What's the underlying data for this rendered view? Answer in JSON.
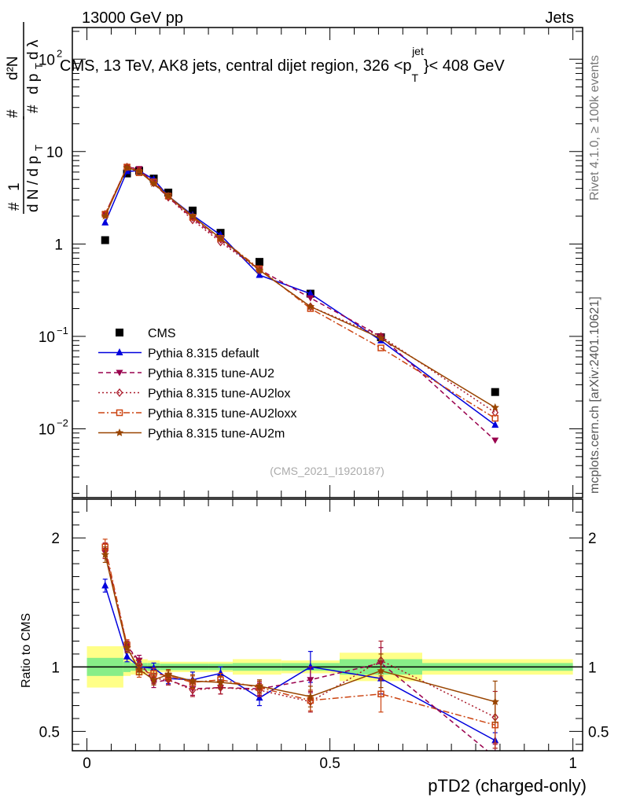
{
  "header": {
    "left": "13000 GeV pp",
    "right": "Jets",
    "title": "CMS, 13 TeV, AK8 jets, central dijet region, 326 <p",
    "title_sub": "T",
    "title_sup": "jet",
    "title_end": "}< 408 GeV"
  },
  "side": {
    "rivet": "Rivet 4.1.0, ≥ 100k events",
    "mcplots": "mcplots.cern.ch [arXiv:2401.10621]"
  },
  "watermark": "(CMS_2021_I1920187)",
  "y_label_main": "1/N dN/dpT dlambda",
  "chart_data": [
    {
      "type": "scatter",
      "title": "CMS, 13 TeV, AK8 jets, central dijet region, 326 < pT jet < 408 GeV",
      "xlabel": "pTD2 (charged-only)",
      "ylabel": "1/(dN/dpT) d²N/(dpT dλ)",
      "yscale": "log",
      "xlim": [
        -0.03,
        1.02
      ],
      "ylim": [
        0.0018,
        220
      ],
      "x": [
        0.0375,
        0.0825,
        0.1075,
        0.1375,
        0.1675,
        0.2175,
        0.275,
        0.355,
        0.46,
        0.605,
        0.84
      ],
      "x_bins": [
        [
          0.0,
          0.075
        ],
        [
          0.075,
          0.09
        ],
        [
          0.09,
          0.125
        ],
        [
          0.125,
          0.15
        ],
        [
          0.15,
          0.185
        ],
        [
          0.185,
          0.25
        ],
        [
          0.25,
          0.3
        ],
        [
          0.3,
          0.4
        ],
        [
          0.4,
          0.52
        ],
        [
          0.52,
          0.69
        ],
        [
          0.69,
          1.0
        ]
      ],
      "yticks": [
        {
          "v": 100,
          "label": "10",
          "exp": "2"
        },
        {
          "v": 10,
          "label": "10",
          "exp": ""
        },
        {
          "v": 1,
          "label": "1",
          "exp": ""
        },
        {
          "v": 0.1,
          "label": "10",
          "exp": "−1"
        },
        {
          "v": 0.01,
          "label": "10",
          "exp": "−2"
        }
      ],
      "series": [
        {
          "name": "CMS",
          "color": "#000000",
          "marker": "square",
          "dash": "",
          "values": [
            1.1,
            5.8,
            6.2,
            5.1,
            3.6,
            2.3,
            1.32,
            0.64,
            0.29,
            0.098,
            0.025
          ]
        },
        {
          "name": "Pythia 8.315 default",
          "color": "#0000dd",
          "marker": "triangle-up",
          "dash": "",
          "values": [
            1.7,
            6.1,
            6.2,
            5.0,
            3.3,
            2.05,
            1.25,
            0.46,
            0.29,
            0.09,
            0.011
          ]
        },
        {
          "name": "Pythia 8.315 tune-AU2",
          "color": "#99004d",
          "marker": "triangle-down",
          "dash": "6,4",
          "values": [
            2.1,
            6.8,
            6.5,
            4.5,
            3.2,
            1.9,
            1.1,
            0.53,
            0.26,
            0.1,
            0.0075
          ]
        },
        {
          "name": "Pythia 8.315 tune-AU2lox",
          "color": "#aa1a2a",
          "marker": "diamond",
          "dash": "2,3",
          "values": [
            2.1,
            6.8,
            6.3,
            4.6,
            3.2,
            1.82,
            1.05,
            0.52,
            0.21,
            0.1,
            0.015
          ]
        },
        {
          "name": "Pythia 8.315 tune-AU2loxx",
          "color": "#cc4411",
          "marker": "square-open",
          "dash": "8,3,2,3",
          "values": [
            2.1,
            6.8,
            5.9,
            4.7,
            3.3,
            1.95,
            1.15,
            0.54,
            0.2,
            0.075,
            0.013
          ]
        },
        {
          "name": "Pythia 8.315 tune-AU2m",
          "color": "#994400",
          "marker": "star",
          "dash": "",
          "values": [
            2.0,
            6.7,
            6.1,
            4.5,
            3.3,
            2.0,
            1.15,
            0.52,
            0.21,
            0.095,
            0.017
          ]
        }
      ]
    },
    {
      "type": "scatter",
      "title": "Ratio",
      "xlabel": "pTD2 (charged-only)",
      "ylabel": "Ratio to CMS",
      "xlim": [
        -0.03,
        1.02
      ],
      "ylim": [
        0.35,
        2.3
      ],
      "xticks": [
        0,
        0.5,
        1
      ],
      "xtick_labels": [
        "0",
        "0.5",
        "1"
      ],
      "yticks": [
        0.5,
        1,
        2
      ],
      "ytick_labels": [
        "0.5",
        "1",
        "2"
      ],
      "reference": 1,
      "bands": [
        {
          "x0": 0.0,
          "x1": 0.075,
          "stat": 0.07,
          "syst": 0.16
        },
        {
          "x0": 0.075,
          "x1": 0.09,
          "stat": 0.04,
          "syst": 0.07
        },
        {
          "x0": 0.09,
          "x1": 0.125,
          "stat": 0.03,
          "syst": 0.06
        },
        {
          "x0": 0.125,
          "x1": 0.15,
          "stat": 0.03,
          "syst": 0.05
        },
        {
          "x0": 0.15,
          "x1": 0.25,
          "stat": 0.025,
          "syst": 0.04
        },
        {
          "x0": 0.25,
          "x1": 0.3,
          "stat": 0.025,
          "syst": 0.04
        },
        {
          "x0": 0.3,
          "x1": 0.4,
          "stat": 0.03,
          "syst": 0.06
        },
        {
          "x0": 0.4,
          "x1": 0.52,
          "stat": 0.03,
          "syst": 0.05
        },
        {
          "x0": 0.52,
          "x1": 0.69,
          "stat": 0.06,
          "syst": 0.11
        },
        {
          "x0": 0.69,
          "x1": 1.0,
          "stat": 0.03,
          "syst": 0.06
        }
      ],
      "series": [
        {
          "name": "Pythia 8.315 default",
          "color": "#0000dd",
          "marker": "triangle-up",
          "dash": "",
          "values": [
            1.63,
            1.08,
            1.0,
            0.99,
            0.91,
            0.9,
            0.95,
            0.76,
            1.0,
            0.91,
            0.43
          ],
          "errors": [
            0.05,
            0.04,
            0.04,
            0.04,
            0.04,
            0.06,
            0.05,
            0.06,
            0.12,
            0.12,
            0.06
          ]
        },
        {
          "name": "Pythia 8.315 tune-AU2",
          "color": "#99004d",
          "marker": "triangle-down",
          "dash": "6,4",
          "values": [
            1.9,
            1.16,
            1.05,
            0.88,
            0.9,
            0.83,
            0.84,
            0.83,
            0.9,
            1.03,
            0.3
          ],
          "errors": [
            0.06,
            0.04,
            0.04,
            0.04,
            0.04,
            0.05,
            0.05,
            0.05,
            0.1,
            0.12,
            0.1
          ]
        },
        {
          "name": "Pythia 8.315 tune-AU2lox",
          "color": "#aa1a2a",
          "marker": "diamond",
          "dash": "2,3",
          "values": [
            1.9,
            1.17,
            1.02,
            0.91,
            0.9,
            0.82,
            0.84,
            0.82,
            0.73,
            1.05,
            0.61
          ],
          "errors": [
            0.06,
            0.04,
            0.04,
            0.04,
            0.04,
            0.05,
            0.05,
            0.05,
            0.08,
            0.15,
            0.2
          ]
        },
        {
          "name": "Pythia 8.315 tune-AU2loxx",
          "color": "#cc4411",
          "marker": "square-open",
          "dash": "8,3,2,3",
          "values": [
            1.93,
            1.17,
            0.96,
            0.95,
            0.93,
            0.88,
            0.9,
            0.84,
            0.74,
            0.79,
            0.55
          ],
          "errors": [
            0.06,
            0.04,
            0.04,
            0.04,
            0.04,
            0.05,
            0.05,
            0.05,
            0.08,
            0.14,
            0.18
          ]
        },
        {
          "name": "Pythia 8.315 tune-AU2m",
          "color": "#994400",
          "marker": "star",
          "dash": "",
          "values": [
            1.87,
            1.15,
            0.98,
            0.9,
            0.94,
            0.89,
            0.88,
            0.85,
            0.77,
            0.97,
            0.73
          ],
          "errors": [
            0.06,
            0.04,
            0.04,
            0.04,
            0.04,
            0.05,
            0.05,
            0.05,
            0.08,
            0.13,
            0.16
          ]
        }
      ]
    }
  ]
}
